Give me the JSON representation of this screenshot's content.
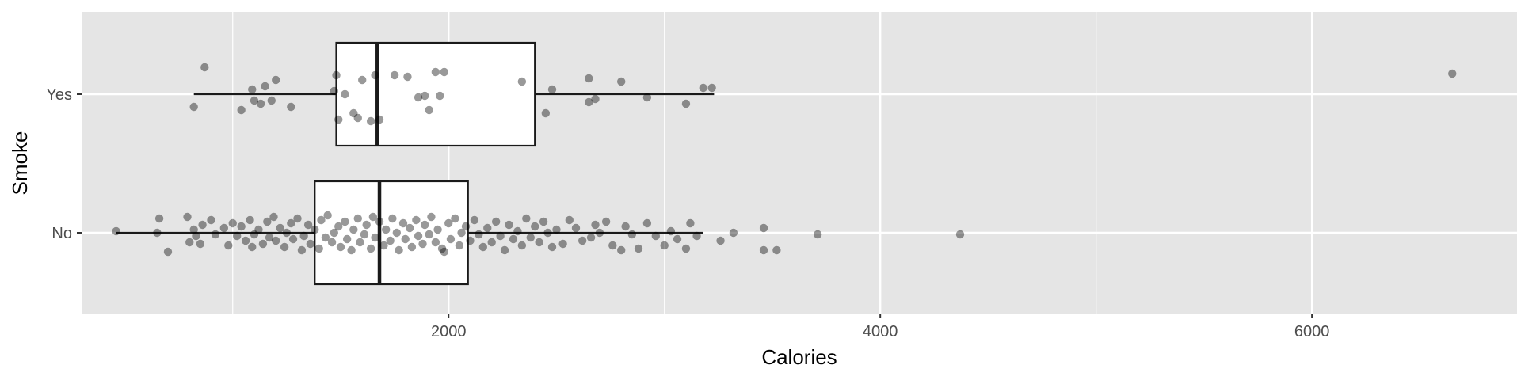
{
  "chart_data": {
    "type": "boxplot",
    "orientation": "horizontal",
    "xlabel": "Calories",
    "ylabel": "Smoke",
    "xlim": [
      300,
      6950
    ],
    "x_ticks": [
      2000,
      4000,
      6000
    ],
    "x_tick_labels": [
      "2000",
      "4000",
      "6000"
    ],
    "x_minor_gridlines": [
      1000,
      3000,
      5000
    ],
    "categories": [
      "Yes",
      "No"
    ],
    "grid": true,
    "legend": "none",
    "colors": {
      "panel_background": "#e5e5e5",
      "grid": "#ffffff",
      "box_fill": "#ffffff",
      "box_stroke": "#1a1a1a",
      "point": "#000000",
      "point_opacity": 0.4
    },
    "series": [
      {
        "category": "Yes",
        "whisker_low": 820,
        "q1": 1480,
        "median": 1670,
        "q3": 2400,
        "whisker_high": 3230,
        "points": [
          [
            820,
            0.08
          ],
          [
            870,
            -0.17
          ],
          [
            1040,
            0.1
          ],
          [
            1100,
            0.04
          ],
          [
            1090,
            -0.03
          ],
          [
            1130,
            0.06
          ],
          [
            1150,
            -0.05
          ],
          [
            1180,
            0.04
          ],
          [
            1200,
            -0.09
          ],
          [
            1270,
            0.08
          ],
          [
            1470,
            -0.02
          ],
          [
            1490,
            0.16
          ],
          [
            1480,
            -0.12
          ],
          [
            1520,
            0.0
          ],
          [
            1560,
            0.12
          ],
          [
            1580,
            0.15
          ],
          [
            1600,
            -0.09
          ],
          [
            1640,
            0.17
          ],
          [
            1660,
            -0.12
          ],
          [
            1680,
            0.16
          ],
          [
            1750,
            -0.12
          ],
          [
            1810,
            -0.11
          ],
          [
            1860,
            0.02
          ],
          [
            1890,
            0.01
          ],
          [
            1910,
            0.1
          ],
          [
            1940,
            -0.14
          ],
          [
            1960,
            0.01
          ],
          [
            1980,
            -0.14
          ],
          [
            2340,
            -0.08
          ],
          [
            2450,
            0.12
          ],
          [
            2480,
            -0.03
          ],
          [
            2650,
            0.05
          ],
          [
            2650,
            -0.1
          ],
          [
            2680,
            0.03
          ],
          [
            2800,
            -0.08
          ],
          [
            2920,
            0.02
          ],
          [
            3100,
            0.06
          ],
          [
            3180,
            -0.04
          ],
          [
            3220,
            -0.04
          ],
          [
            6650,
            -0.13
          ]
        ]
      },
      {
        "category": "No",
        "whisker_low": 460,
        "q1": 1380,
        "median": 1680,
        "q3": 2090,
        "whisker_high": 3180,
        "points": [
          [
            460,
            -0.01
          ],
          [
            650,
            0.0
          ],
          [
            660,
            -0.09
          ],
          [
            700,
            0.12
          ],
          [
            790,
            -0.1
          ],
          [
            800,
            0.06
          ],
          [
            820,
            -0.02
          ],
          [
            830,
            0.02
          ],
          [
            850,
            0.07
          ],
          [
            860,
            -0.05
          ],
          [
            900,
            -0.08
          ],
          [
            920,
            0.01
          ],
          [
            960,
            -0.03
          ],
          [
            980,
            0.08
          ],
          [
            1000,
            -0.06
          ],
          [
            1020,
            0.02
          ],
          [
            1040,
            -0.04
          ],
          [
            1060,
            0.05
          ],
          [
            1080,
            -0.08
          ],
          [
            1090,
            0.09
          ],
          [
            1100,
            0.01
          ],
          [
            1120,
            -0.02
          ],
          [
            1140,
            0.07
          ],
          [
            1160,
            -0.07
          ],
          [
            1170,
            0.03
          ],
          [
            1190,
            -0.1
          ],
          [
            1200,
            0.05
          ],
          [
            1220,
            -0.03
          ],
          [
            1240,
            0.09
          ],
          [
            1250,
            0.0
          ],
          [
            1270,
            -0.06
          ],
          [
            1280,
            0.04
          ],
          [
            1300,
            -0.09
          ],
          [
            1320,
            0.11
          ],
          [
            1330,
            0.02
          ],
          [
            1350,
            -0.05
          ],
          [
            1360,
            0.07
          ],
          [
            1380,
            -0.02
          ],
          [
            1400,
            0.1
          ],
          [
            1410,
            -0.08
          ],
          [
            1430,
            0.03
          ],
          [
            1440,
            -0.11
          ],
          [
            1460,
            0.06
          ],
          [
            1470,
            0.0
          ],
          [
            1490,
            -0.04
          ],
          [
            1500,
            0.09
          ],
          [
            1520,
            -0.07
          ],
          [
            1530,
            0.04
          ],
          [
            1550,
            0.11
          ],
          [
            1560,
            -0.02
          ],
          [
            1580,
            -0.09
          ],
          [
            1590,
            0.06
          ],
          [
            1610,
            0.01
          ],
          [
            1620,
            -0.05
          ],
          [
            1640,
            0.1
          ],
          [
            1650,
            -0.1
          ],
          [
            1660,
            0.03
          ],
          [
            1680,
            -0.07
          ],
          [
            1700,
            0.08
          ],
          [
            1710,
            -0.02
          ],
          [
            1730,
            0.05
          ],
          [
            1740,
            -0.09
          ],
          [
            1760,
            0.0
          ],
          [
            1770,
            0.11
          ],
          [
            1790,
            -0.06
          ],
          [
            1800,
            0.04
          ],
          [
            1820,
            -0.03
          ],
          [
            1830,
            0.09
          ],
          [
            1850,
            -0.08
          ],
          [
            1860,
            0.02
          ],
          [
            1880,
            0.07
          ],
          [
            1890,
            -0.05
          ],
          [
            1910,
            0.01
          ],
          [
            1920,
            -0.1
          ],
          [
            1940,
            0.06
          ],
          [
            1950,
            -0.02
          ],
          [
            1970,
            0.1
          ],
          [
            1980,
            0.12
          ],
          [
            2000,
            -0.06
          ],
          [
            2010,
            0.04
          ],
          [
            2030,
            -0.09
          ],
          [
            2050,
            0.08
          ],
          [
            2060,
            0.0
          ],
          [
            2080,
            -0.04
          ],
          [
            2100,
            0.05
          ],
          [
            2120,
            -0.08
          ],
          [
            2140,
            0.01
          ],
          [
            2160,
            0.09
          ],
          [
            2180,
            -0.03
          ],
          [
            2200,
            0.06
          ],
          [
            2220,
            -0.07
          ],
          [
            2240,
            0.02
          ],
          [
            2260,
            0.11
          ],
          [
            2280,
            -0.05
          ],
          [
            2300,
            0.04
          ],
          [
            2320,
            -0.01
          ],
          [
            2340,
            0.08
          ],
          [
            2360,
            -0.09
          ],
          [
            2380,
            0.03
          ],
          [
            2400,
            -0.04
          ],
          [
            2420,
            0.06
          ],
          [
            2440,
            -0.07
          ],
          [
            2460,
            0.0
          ],
          [
            2480,
            0.09
          ],
          [
            2500,
            -0.02
          ],
          [
            2530,
            0.07
          ],
          [
            2560,
            -0.08
          ],
          [
            2590,
            -0.03
          ],
          [
            2620,
            0.05
          ],
          [
            2660,
            0.03
          ],
          [
            2680,
            -0.05
          ],
          [
            2700,
            0.0
          ],
          [
            2730,
            -0.07
          ],
          [
            2760,
            0.08
          ],
          [
            2800,
            0.11
          ],
          [
            2820,
            -0.04
          ],
          [
            2850,
            0.01
          ],
          [
            2880,
            0.1
          ],
          [
            2920,
            -0.06
          ],
          [
            2960,
            0.02
          ],
          [
            3000,
            0.08
          ],
          [
            3030,
            -0.01
          ],
          [
            3060,
            0.04
          ],
          [
            3100,
            0.1
          ],
          [
            3120,
            -0.06
          ],
          [
            3150,
            0.02
          ],
          [
            3260,
            0.05
          ],
          [
            3320,
            0.0
          ],
          [
            3460,
            0.11
          ],
          [
            3460,
            -0.03
          ],
          [
            3520,
            0.11
          ],
          [
            3710,
            0.01
          ],
          [
            4370,
            0.01
          ]
        ]
      }
    ]
  }
}
